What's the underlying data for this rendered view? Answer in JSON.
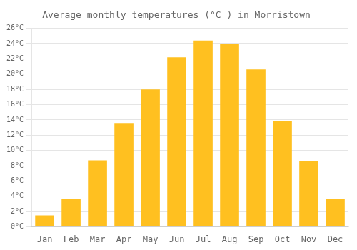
{
  "chart_data": {
    "type": "bar",
    "title": "Average monthly temperatures (°C ) in Morristown",
    "categories": [
      "Jan",
      "Feb",
      "Mar",
      "Apr",
      "May",
      "Jun",
      "Jul",
      "Aug",
      "Sep",
      "Oct",
      "Nov",
      "Dec"
    ],
    "values": [
      1.5,
      3.6,
      8.7,
      13.6,
      18.0,
      22.2,
      24.4,
      23.9,
      20.6,
      13.9,
      8.6,
      3.6
    ],
    "color": "#FFC020",
    "ylim": [
      0,
      26
    ],
    "yticks": [
      {
        "value": 0,
        "label": "0°C"
      },
      {
        "value": 2,
        "label": "2°C"
      },
      {
        "value": 4,
        "label": "4°C"
      },
      {
        "value": 6,
        "label": "6°C"
      },
      {
        "value": 8,
        "label": "8°C"
      },
      {
        "value": 10,
        "label": "10°C"
      },
      {
        "value": 12,
        "label": "12°C"
      },
      {
        "value": 14,
        "label": "14°C"
      },
      {
        "value": 16,
        "label": "16°C"
      },
      {
        "value": 18,
        "label": "18°C"
      },
      {
        "value": 20,
        "label": "20°C"
      },
      {
        "value": 22,
        "label": "22°C"
      },
      {
        "value": 24,
        "label": "24°C"
      },
      {
        "value": 26,
        "label": "26°C"
      }
    ],
    "grid": true
  }
}
